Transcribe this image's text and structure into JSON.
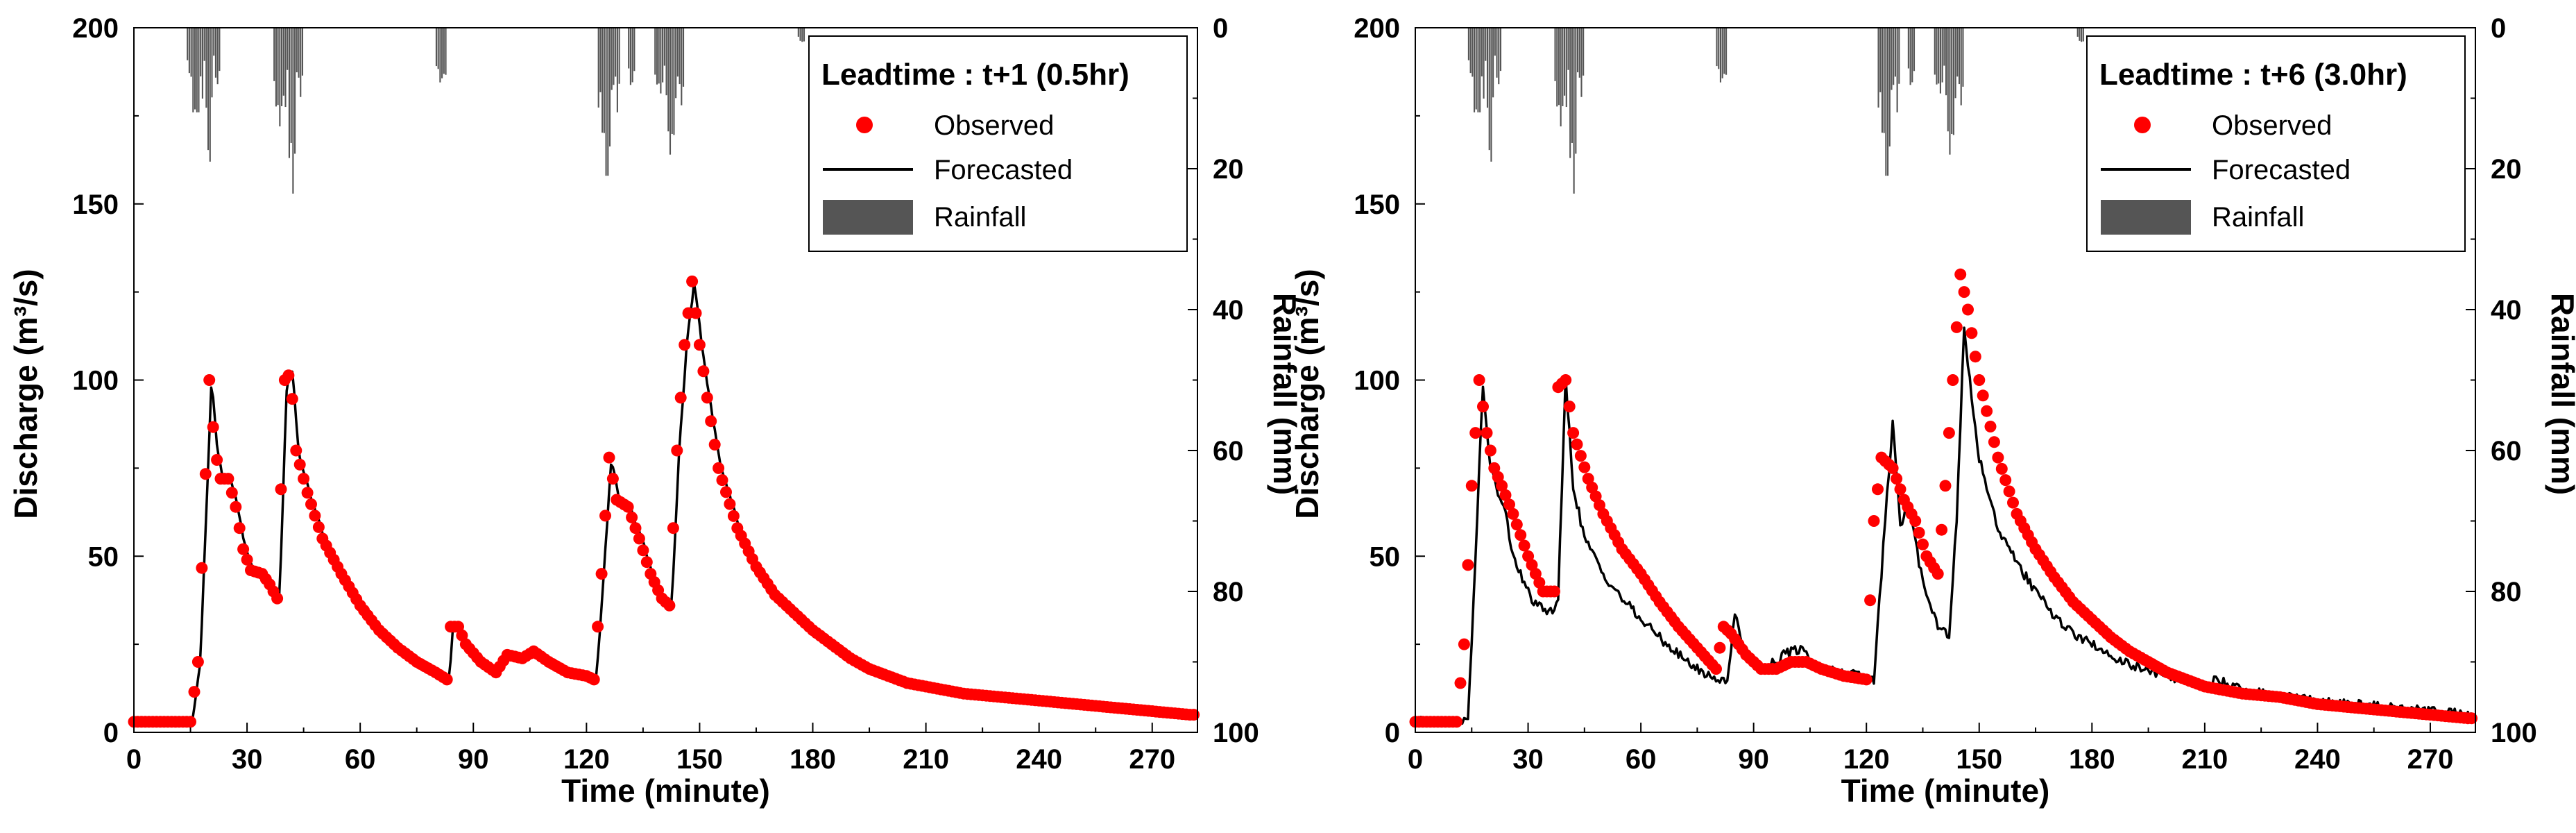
{
  "chart_data": [
    {
      "type": "line",
      "id": "left",
      "legend": {
        "title": "Leadtime : t+1 (0.5hr)",
        "observed_label": "Observed",
        "forecasted_label": "Forecasted",
        "rainfall_label": "Rainfall"
      },
      "xlabel": "Time (minute)",
      "ylabel_left": "Discharge (m³/s)",
      "ylabel_right": "Rainfall (mm)",
      "xlim": [
        0,
        282
      ],
      "ylim_left": [
        0,
        200
      ],
      "ylim_right": [
        0,
        100
      ],
      "right_axis_inverted": true,
      "x_ticks": [
        0,
        30,
        60,
        90,
        120,
        150,
        180,
        210,
        240,
        270
      ],
      "y_ticks_left": [
        0,
        50,
        100,
        150,
        200
      ],
      "y_ticks_right": [
        0,
        20,
        40,
        60,
        80,
        100
      ],
      "colors": {
        "observed": "#ff0000",
        "forecasted": "#000000",
        "rainfall": "#555555"
      },
      "keyframes": [
        [
          0,
          3
        ],
        [
          15,
          3
        ],
        [
          17,
          20
        ],
        [
          18.5,
          60
        ],
        [
          20,
          100
        ],
        [
          21.5,
          80
        ],
        [
          23,
          72
        ],
        [
          25,
          72
        ],
        [
          27,
          64
        ],
        [
          29,
          52
        ],
        [
          31,
          46
        ],
        [
          34,
          45
        ],
        [
          36,
          42
        ],
        [
          38,
          38
        ],
        [
          40,
          100
        ],
        [
          41.5,
          102
        ],
        [
          43,
          80
        ],
        [
          46,
          68
        ],
        [
          50,
          55
        ],
        [
          55,
          45
        ],
        [
          60,
          36
        ],
        [
          65,
          29
        ],
        [
          70,
          24
        ],
        [
          75,
          20
        ],
        [
          80,
          17
        ],
        [
          83,
          15
        ],
        [
          84,
          30
        ],
        [
          86,
          30
        ],
        [
          88,
          25
        ],
        [
          92,
          20
        ],
        [
          96,
          17
        ],
        [
          99,
          22
        ],
        [
          103,
          21
        ],
        [
          106,
          23
        ],
        [
          110,
          20
        ],
        [
          115,
          17
        ],
        [
          120,
          16
        ],
        [
          122,
          15
        ],
        [
          124,
          45
        ],
        [
          126,
          78
        ],
        [
          128,
          66
        ],
        [
          131,
          64
        ],
        [
          134,
          55
        ],
        [
          137,
          45
        ],
        [
          140,
          38
        ],
        [
          142,
          36
        ],
        [
          144,
          80
        ],
        [
          146,
          110
        ],
        [
          148,
          128
        ],
        [
          150,
          110
        ],
        [
          152,
          95
        ],
        [
          155,
          75
        ],
        [
          160,
          58
        ],
        [
          165,
          47
        ],
        [
          170,
          39
        ],
        [
          175,
          34
        ],
        [
          180,
          29
        ],
        [
          185,
          25
        ],
        [
          190,
          21
        ],
        [
          195,
          18
        ],
        [
          200,
          16
        ],
        [
          205,
          14
        ],
        [
          210,
          13
        ],
        [
          215,
          12
        ],
        [
          220,
          11
        ],
        [
          230,
          10
        ],
        [
          240,
          9
        ],
        [
          250,
          8
        ],
        [
          260,
          7
        ],
        [
          270,
          6
        ],
        [
          280,
          5
        ]
      ],
      "obs_shift": 0,
      "fc_lag": 0.6,
      "fc_noise": 0.6,
      "fc_peak_boost": [
        [
          20,
          1.0
        ],
        [
          41.5,
          1.03
        ],
        [
          126,
          1.04
        ],
        [
          148,
          0.98
        ]
      ],
      "rain_events": [
        [
          14,
          19,
          12
        ],
        [
          19,
          21,
          19
        ],
        [
          21,
          23,
          8
        ],
        [
          37,
          41,
          14
        ],
        [
          41,
          43,
          27
        ],
        [
          43,
          45,
          10
        ],
        [
          80,
          83,
          8
        ],
        [
          123,
          127,
          21
        ],
        [
          127,
          129,
          12
        ],
        [
          131,
          133,
          9
        ],
        [
          138,
          141,
          10
        ],
        [
          141,
          144,
          18
        ],
        [
          144,
          146,
          11
        ],
        [
          176,
          178,
          2
        ]
      ]
    },
    {
      "type": "line",
      "id": "right",
      "legend": {
        "title": "Leadtime : t+6 (3.0hr)",
        "observed_label": "Observed",
        "forecasted_label": "Forecasted",
        "rainfall_label": "Rainfall"
      },
      "xlabel": "Time (minute)",
      "ylabel_left": "Discharge (m³/s)",
      "ylabel_right": "Rainfall (mm)",
      "xlim": [
        0,
        282
      ],
      "ylim_left": [
        0,
        200
      ],
      "ylim_right": [
        0,
        100
      ],
      "right_axis_inverted": true,
      "x_ticks": [
        0,
        30,
        60,
        90,
        120,
        150,
        180,
        210,
        240,
        270
      ],
      "y_ticks_left": [
        0,
        50,
        100,
        150,
        200
      ],
      "y_ticks_right": [
        0,
        20,
        40,
        60,
        80,
        100
      ],
      "colors": {
        "observed": "#ff0000",
        "forecasted": "#000000",
        "rainfall": "#555555"
      },
      "keyframes_observed": [
        [
          0,
          3
        ],
        [
          11,
          3
        ],
        [
          13,
          25
        ],
        [
          15,
          70
        ],
        [
          17,
          100
        ],
        [
          19,
          85
        ],
        [
          21,
          75
        ],
        [
          23,
          70
        ],
        [
          26,
          62
        ],
        [
          30,
          50
        ],
        [
          34,
          40
        ],
        [
          37,
          40
        ],
        [
          38,
          98
        ],
        [
          40,
          100
        ],
        [
          42,
          85
        ],
        [
          46,
          72
        ],
        [
          50,
          62
        ],
        [
          55,
          52
        ],
        [
          60,
          45
        ],
        [
          65,
          37
        ],
        [
          70,
          30
        ],
        [
          75,
          24
        ],
        [
          80,
          18
        ],
        [
          82,
          30
        ],
        [
          84,
          28
        ],
        [
          88,
          22
        ],
        [
          92,
          18
        ],
        [
          96,
          18
        ],
        [
          100,
          20
        ],
        [
          104,
          20
        ],
        [
          108,
          18
        ],
        [
          114,
          16
        ],
        [
          120,
          15
        ],
        [
          122,
          60
        ],
        [
          124,
          78
        ],
        [
          127,
          75
        ],
        [
          130,
          66
        ],
        [
          133,
          60
        ],
        [
          136,
          50
        ],
        [
          139,
          45
        ],
        [
          141,
          70
        ],
        [
          143,
          100
        ],
        [
          145,
          130
        ],
        [
          147,
          120
        ],
        [
          150,
          100
        ],
        [
          155,
          78
        ],
        [
          160,
          62
        ],
        [
          165,
          52
        ],
        [
          170,
          44
        ],
        [
          175,
          37
        ],
        [
          180,
          32
        ],
        [
          185,
          27
        ],
        [
          190,
          23
        ],
        [
          195,
          20
        ],
        [
          200,
          17
        ],
        [
          210,
          13
        ],
        [
          220,
          11
        ],
        [
          230,
          10
        ],
        [
          240,
          8
        ],
        [
          250,
          7
        ],
        [
          260,
          6
        ],
        [
          270,
          5
        ],
        [
          280,
          4
        ]
      ],
      "keyframes_forecast": [
        [
          0,
          3
        ],
        [
          14,
          3
        ],
        [
          16,
          50
        ],
        [
          18,
          98
        ],
        [
          20,
          75
        ],
        [
          22,
          68
        ],
        [
          24,
          62
        ],
        [
          26,
          50
        ],
        [
          29,
          42
        ],
        [
          32,
          36
        ],
        [
          36,
          34
        ],
        [
          38,
          38
        ],
        [
          40,
          100
        ],
        [
          42,
          70
        ],
        [
          45,
          55
        ],
        [
          50,
          45
        ],
        [
          55,
          38
        ],
        [
          60,
          32
        ],
        [
          65,
          27
        ],
        [
          70,
          22
        ],
        [
          75,
          18
        ],
        [
          80,
          15
        ],
        [
          83,
          15
        ],
        [
          85,
          33
        ],
        [
          87,
          26
        ],
        [
          90,
          20
        ],
        [
          93,
          18
        ],
        [
          98,
          22
        ],
        [
          103,
          24
        ],
        [
          106,
          19
        ],
        [
          112,
          17
        ],
        [
          118,
          16
        ],
        [
          122,
          15
        ],
        [
          125,
          60
        ],
        [
          127,
          88
        ],
        [
          129,
          58
        ],
        [
          131,
          66
        ],
        [
          134,
          48
        ],
        [
          136,
          40
        ],
        [
          139,
          30
        ],
        [
          142,
          28
        ],
        [
          144,
          60
        ],
        [
          146,
          115
        ],
        [
          148,
          95
        ],
        [
          150,
          78
        ],
        [
          155,
          58
        ],
        [
          160,
          48
        ],
        [
          165,
          40
        ],
        [
          170,
          33
        ],
        [
          175,
          28
        ],
        [
          180,
          25
        ],
        [
          185,
          22
        ],
        [
          190,
          19
        ],
        [
          200,
          16
        ],
        [
          210,
          13
        ],
        [
          213,
          15
        ],
        [
          220,
          12
        ],
        [
          230,
          10
        ],
        [
          240,
          9
        ],
        [
          250,
          8
        ],
        [
          260,
          7
        ],
        [
          270,
          6
        ],
        [
          280,
          5
        ]
      ],
      "fc_noise": 1.4,
      "rain_events": [
        [
          14,
          19,
          12
        ],
        [
          19,
          21,
          19
        ],
        [
          21,
          23,
          8
        ],
        [
          37,
          41,
          14
        ],
        [
          41,
          43,
          27
        ],
        [
          43,
          45,
          10
        ],
        [
          80,
          83,
          8
        ],
        [
          123,
          127,
          21
        ],
        [
          127,
          129,
          12
        ],
        [
          131,
          133,
          9
        ],
        [
          138,
          141,
          10
        ],
        [
          141,
          144,
          18
        ],
        [
          144,
          146,
          11
        ],
        [
          176,
          178,
          2
        ]
      ]
    }
  ]
}
